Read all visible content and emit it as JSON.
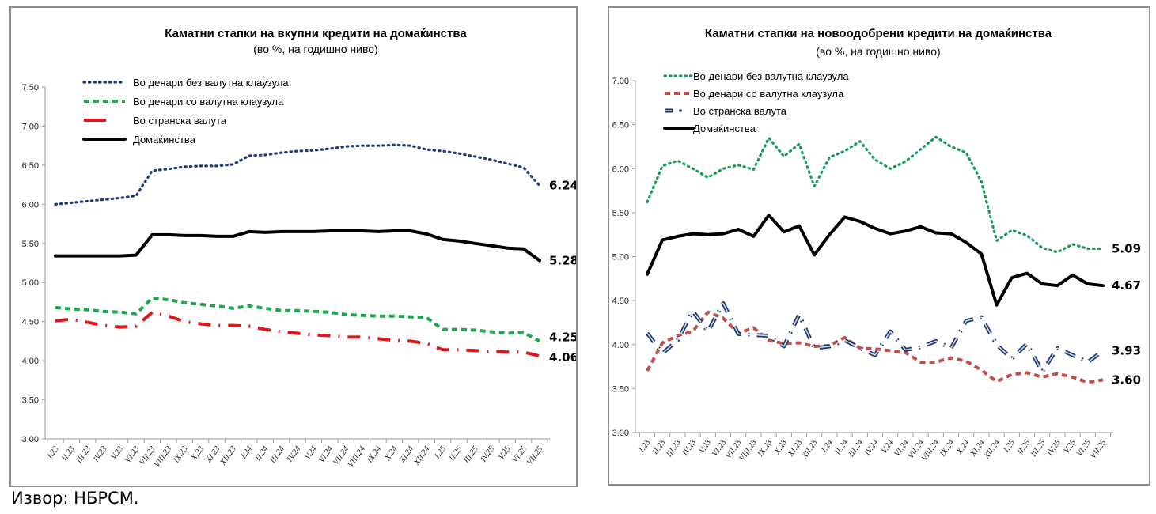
{
  "source_note": "Извор: НБРСМ.",
  "categories": [
    "I.23",
    "II.23",
    "III.23",
    "IV.23",
    "V.23",
    "VI.23",
    "VII.23",
    "VIII.23",
    "IX.23",
    "X.23",
    "XI.23",
    "XII.23",
    "I.24",
    "II.24",
    "III.24",
    "IV.24",
    "V.24",
    "VI.24",
    "VII.24",
    "VIII.24",
    "IX.24",
    "X.24",
    "XI.24",
    "XII.24",
    "I.25",
    "II.25",
    "III.25",
    "IV.25",
    "V.25",
    "VI.25",
    "VII.25"
  ],
  "chart_data": [
    {
      "type": "line",
      "title": "Каматни стапки на вкупни кредити на домаќинства",
      "subtitle": "(во %, на годишно ниво)",
      "xlabel": "",
      "ylabel": "",
      "ylim": [
        3.0,
        7.5
      ],
      "yticks": [
        "3.00",
        "3.50",
        "4.00",
        "4.50",
        "5.00",
        "5.50",
        "6.00",
        "6.50",
        "7.00",
        "7.50"
      ],
      "grid": false,
      "legend_position": "top-left",
      "categories": [
        "I.23",
        "II.23",
        "III.23",
        "IV.23",
        "V.23",
        "VI.23",
        "VII.23",
        "VIII.23",
        "IX.23",
        "X.23",
        "XI.23",
        "XII.23",
        "I.24",
        "II.24",
        "III.24",
        "IV.24",
        "V.24",
        "VI.24",
        "VII.24",
        "VIII.24",
        "IX.24",
        "X.24",
        "XI.24",
        "XII.24",
        "I.25",
        "II.25",
        "III.25",
        "IV.25",
        "V.25",
        "VI.25",
        "VII.25"
      ],
      "series": [
        {
          "name": "Во денари без валутна клаузула",
          "color": "#1f3e78",
          "style": "dotted",
          "end_label": "6.24",
          "values": [
            6.0,
            6.02,
            6.04,
            6.06,
            6.08,
            6.11,
            6.43,
            6.45,
            6.48,
            6.49,
            6.49,
            6.51,
            6.62,
            6.63,
            6.66,
            6.68,
            6.69,
            6.71,
            6.74,
            6.75,
            6.75,
            6.76,
            6.75,
            6.7,
            6.68,
            6.65,
            6.61,
            6.57,
            6.52,
            6.47,
            6.24
          ]
        },
        {
          "name": "Во денари со валутна клаузула",
          "color": "#1ca84f",
          "style": "dashed",
          "end_label": "4.25",
          "values": [
            4.68,
            4.66,
            4.65,
            4.63,
            4.62,
            4.6,
            4.8,
            4.78,
            4.74,
            4.72,
            4.7,
            4.67,
            4.7,
            4.67,
            4.64,
            4.64,
            4.63,
            4.62,
            4.59,
            4.58,
            4.57,
            4.57,
            4.56,
            4.55,
            4.4,
            4.4,
            4.39,
            4.37,
            4.35,
            4.36,
            4.25
          ]
        },
        {
          "name": "Во странска валута",
          "color": "#e0161b",
          "style": "dashdot",
          "end_label": "4.06",
          "values": [
            4.51,
            4.53,
            4.49,
            4.45,
            4.43,
            4.44,
            4.62,
            4.57,
            4.5,
            4.47,
            4.45,
            4.45,
            4.44,
            4.4,
            4.37,
            4.35,
            4.33,
            4.32,
            4.3,
            4.3,
            4.28,
            4.26,
            4.25,
            4.22,
            4.14,
            4.14,
            4.13,
            4.12,
            4.11,
            4.11,
            4.06
          ]
        },
        {
          "name": "Домаќинства",
          "color": "#000000",
          "style": "solid",
          "end_label": "5.28",
          "values": [
            5.34,
            5.34,
            5.34,
            5.34,
            5.34,
            5.35,
            5.61,
            5.61,
            5.6,
            5.6,
            5.59,
            5.59,
            5.65,
            5.64,
            5.65,
            5.65,
            5.65,
            5.66,
            5.66,
            5.66,
            5.65,
            5.66,
            5.66,
            5.62,
            5.55,
            5.53,
            5.5,
            5.47,
            5.44,
            5.43,
            5.28
          ]
        }
      ]
    },
    {
      "type": "line",
      "title": "Каматни стапки на новоодобрени кредити на домаќинства",
      "subtitle": "(во %, на годишно ниво)",
      "xlabel": "",
      "ylabel": "",
      "ylim": [
        3.0,
        7.0
      ],
      "yticks": [
        "3.00",
        "3.50",
        "4.00",
        "4.50",
        "5.00",
        "5.50",
        "6.00",
        "6.50",
        "7.00"
      ],
      "grid": false,
      "legend_position": "top-left",
      "categories": [
        "I.23",
        "II.23",
        "III.23",
        "IV.23",
        "V.23",
        "VI.23",
        "VII.23",
        "VIII.23",
        "IX.23",
        "X.23",
        "XI.23",
        "XII.23",
        "I.24",
        "II.24",
        "III.24",
        "IV.24",
        "V.24",
        "VI.24",
        "VII.24",
        "VIII.24",
        "IX.24",
        "X.24",
        "XI.24",
        "XII.24",
        "I.25",
        "II.25",
        "III.25",
        "IV.25",
        "V.25",
        "VI.25",
        "VII.25"
      ],
      "series": [
        {
          "name": "Во денари без валутна клаузула",
          "color": "#1a9a5a",
          "style": "dotted",
          "end_label": "5.09",
          "values": [
            5.62,
            6.03,
            6.09,
            6.0,
            5.9,
            6.0,
            6.04,
            5.99,
            6.35,
            6.14,
            6.28,
            5.8,
            6.13,
            6.2,
            6.31,
            6.1,
            6.0,
            6.08,
            6.22,
            6.36,
            6.25,
            6.18,
            5.85,
            5.18,
            5.3,
            5.24,
            5.1,
            5.05,
            5.14,
            5.09,
            5.09
          ]
        },
        {
          "name": "Во денари со валутна клаузула",
          "color": "#c0504d",
          "style": "dashed",
          "end_label": "3.60",
          "values": [
            3.7,
            4.02,
            4.1,
            4.15,
            4.37,
            4.3,
            4.13,
            4.19,
            4.05,
            4.01,
            4.02,
            3.98,
            3.99,
            4.08,
            3.96,
            3.95,
            3.93,
            3.91,
            3.8,
            3.8,
            3.85,
            3.81,
            3.71,
            3.58,
            3.66,
            3.68,
            3.63,
            3.67,
            3.63,
            3.57,
            3.6
          ]
        },
        {
          "name": "Во странска валута",
          "color": "#1f3864",
          "style": "dashdot",
          "end_label": "3.93",
          "values": [
            4.13,
            3.9,
            4.05,
            4.38,
            4.15,
            4.47,
            4.12,
            4.11,
            4.1,
            3.98,
            4.34,
            3.96,
            3.98,
            4.05,
            3.96,
            3.88,
            4.15,
            3.94,
            3.97,
            4.04,
            3.96,
            4.27,
            4.31,
            4.0,
            3.84,
            4.01,
            3.69,
            3.96,
            3.88,
            3.8,
            3.93
          ]
        },
        {
          "name": "Домаќинства",
          "color": "#000000",
          "style": "solid",
          "end_label": "4.67",
          "values": [
            4.8,
            5.19,
            5.23,
            5.26,
            5.25,
            5.26,
            5.31,
            5.23,
            5.47,
            5.28,
            5.35,
            5.02,
            5.25,
            5.45,
            5.4,
            5.32,
            5.26,
            5.29,
            5.34,
            5.27,
            5.26,
            5.16,
            5.03,
            4.45,
            4.76,
            4.81,
            4.69,
            4.67,
            4.79,
            4.69,
            4.67
          ]
        }
      ]
    }
  ]
}
